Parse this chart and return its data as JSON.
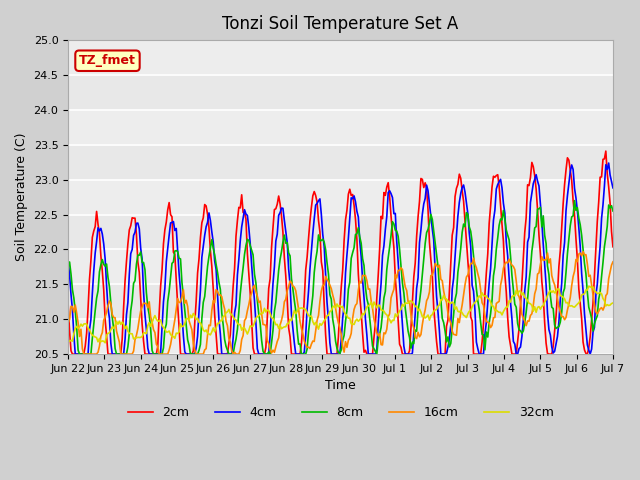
{
  "title": "Tonzi Soil Temperature Set A",
  "xlabel": "Time",
  "ylabel": "Soil Temperature (C)",
  "ylim": [
    20.5,
    25.0
  ],
  "yticks": [
    20.5,
    21.0,
    21.5,
    22.0,
    22.5,
    23.0,
    23.5,
    24.0,
    24.5,
    25.0
  ],
  "xtick_labels": [
    "Jun 22",
    "Jun 23",
    "Jun 24",
    "Jun 25",
    "Jun 26",
    "Jun 27",
    "Jun 28",
    "Jun 29",
    "Jun 30",
    "Jul 1",
    "Jul 2",
    "Jul 3",
    "Jul 4",
    "Jul 5",
    "Jul 6",
    "Jul 7"
  ],
  "xtick_positions": [
    0,
    1,
    2,
    3,
    4,
    5,
    6,
    7,
    8,
    9,
    10,
    11,
    12,
    13,
    14,
    15
  ],
  "annotation_text": "TZ_fmet",
  "annotation_bg": "#ffffc0",
  "annotation_edge": "#cc0000",
  "fig_bg": "#d0d0d0",
  "plot_bg": "#e8e8e8",
  "line_colors": {
    "2cm": "#ff0000",
    "4cm": "#0000ff",
    "8cm": "#00bb00",
    "16cm": "#ff8800",
    "32cm": "#dddd00"
  },
  "line_width": 1.2,
  "n_points": 384,
  "days": 15
}
